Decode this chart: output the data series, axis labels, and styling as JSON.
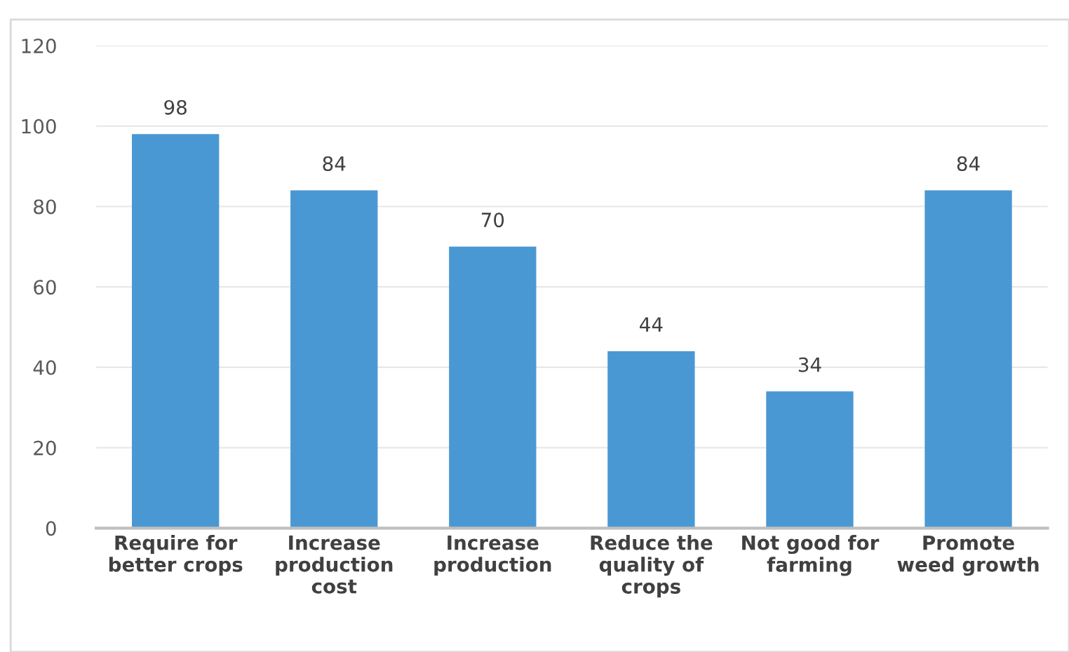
{
  "chart_data": {
    "type": "bar",
    "categories": [
      "Require for\nbetter crops",
      "Increase\nproduction\ncost",
      "Increase\nproduction",
      "Reduce the\nquality of\ncrops",
      "Not good for\nfarming",
      "Promote\nweed growth"
    ],
    "values": [
      98,
      84,
      70,
      44,
      34,
      84
    ],
    "color": "#4a98d3",
    "ylim": [
      0,
      120
    ],
    "yticks": [
      0,
      20,
      40,
      60,
      80,
      100,
      120
    ],
    "grid": "y",
    "data_labels": true
  }
}
